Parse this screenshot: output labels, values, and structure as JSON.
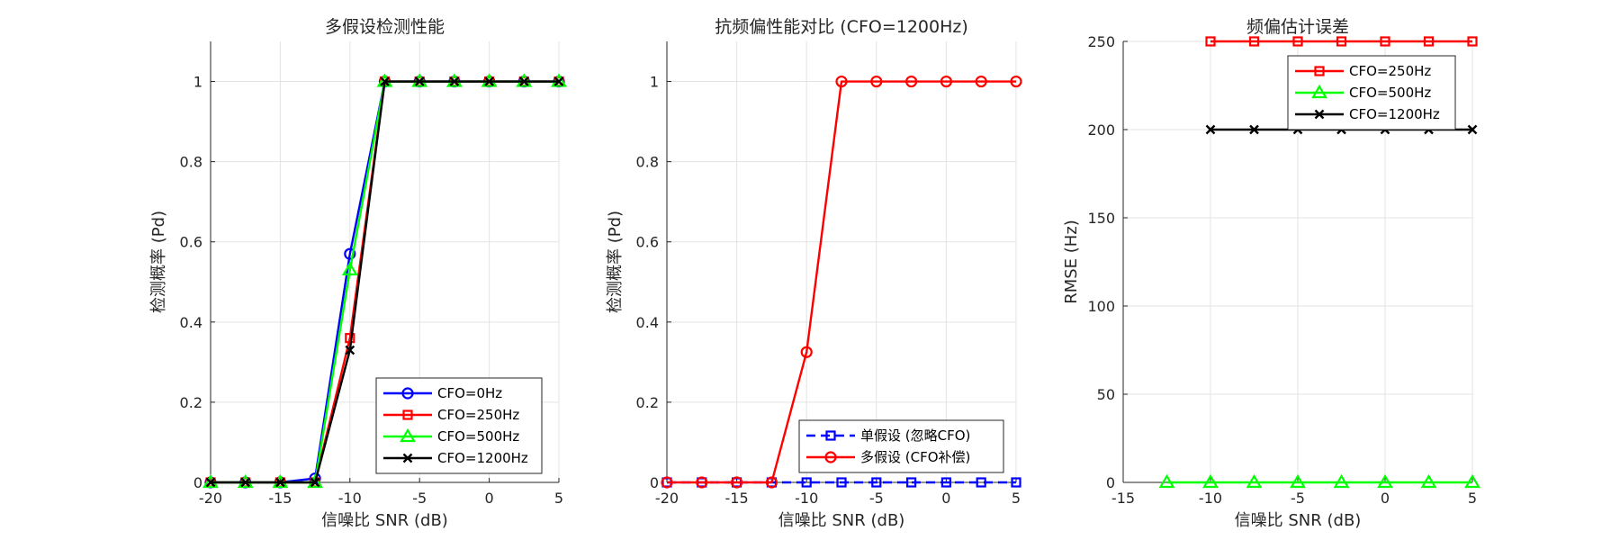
{
  "chart_data": [
    {
      "type": "line",
      "title": "多假设检测性能",
      "xlabel": "信噪比 SNR (dB)",
      "ylabel": "检测概率 (Pd)",
      "xlim": [
        -20,
        5
      ],
      "ylim": [
        0,
        1.1
      ],
      "xticks": [
        -20,
        -15,
        -10,
        -5,
        0,
        5
      ],
      "yticks": [
        0,
        0.2,
        0.4,
        0.6,
        0.8,
        1
      ],
      "ytick_labels": [
        "0",
        "0.2",
        "0.4",
        "0.6",
        "0.8",
        "1"
      ],
      "grid": true,
      "legend_position": "bottom-right",
      "x": [
        -20,
        -17.5,
        -15,
        -12.5,
        -10,
        -7.5,
        -5,
        -2.5,
        0,
        2.5,
        5
      ],
      "series": [
        {
          "name": "CFO=0Hz",
          "color": "#0000FF",
          "marker": "circle",
          "dash": "solid",
          "values": [
            0,
            0,
            0,
            0.01,
            0.57,
            1,
            1,
            1,
            1,
            1,
            1
          ]
        },
        {
          "name": "CFO=250Hz",
          "color": "#FF0000",
          "marker": "square",
          "dash": "solid",
          "values": [
            0,
            0,
            0,
            0,
            0.36,
            1,
            1,
            1,
            1,
            1,
            1
          ]
        },
        {
          "name": "CFO=500Hz",
          "color": "#00FF00",
          "marker": "triangle",
          "dash": "solid",
          "values": [
            0,
            0,
            0,
            0,
            0.53,
            1,
            1,
            1,
            1,
            1,
            1
          ]
        },
        {
          "name": "CFO=1200Hz",
          "color": "#000000",
          "marker": "x",
          "dash": "solid",
          "values": [
            0,
            0,
            0,
            0,
            0.33,
            1,
            1,
            1,
            1,
            1,
            1
          ]
        }
      ]
    },
    {
      "type": "line",
      "title": "抗频偏性能对比 (CFO=1200Hz)",
      "xlabel": "信噪比 SNR (dB)",
      "ylabel": "检测概率 (Pd)",
      "xlim": [
        -20,
        5
      ],
      "ylim": [
        0,
        1.1
      ],
      "xticks": [
        -20,
        -15,
        -10,
        -5,
        0,
        5
      ],
      "yticks": [
        0,
        0.2,
        0.4,
        0.6,
        0.8,
        1
      ],
      "ytick_labels": [
        "0",
        "0.2",
        "0.4",
        "0.6",
        "0.8",
        "1"
      ],
      "grid": true,
      "legend_position": "bottom-right",
      "x": [
        -20,
        -17.5,
        -15,
        -12.5,
        -10,
        -7.5,
        -5,
        -2.5,
        0,
        2.5,
        5
      ],
      "series": [
        {
          "name": "单假设 (忽略CFO)",
          "color": "#0000FF",
          "marker": "square",
          "dash": "dashed",
          "values": [
            0,
            0,
            0,
            0,
            0,
            0,
            0,
            0,
            0,
            0,
            0
          ]
        },
        {
          "name": "多假设 (CFO补偿)",
          "color": "#FF0000",
          "marker": "circle",
          "dash": "solid",
          "values": [
            0,
            0,
            0,
            0,
            0.325,
            1,
            1,
            1,
            1,
            1,
            1
          ]
        }
      ]
    },
    {
      "type": "line",
      "title": "频偏估计误差",
      "xlabel": "信噪比 SNR (dB)",
      "ylabel": "RMSE (Hz)",
      "xlim": [
        -15,
        5
      ],
      "ylim": [
        0,
        250
      ],
      "xticks": [
        -15,
        -10,
        -5,
        0,
        5
      ],
      "yticks": [
        0,
        50,
        100,
        150,
        200,
        250
      ],
      "ytick_labels": [
        "0",
        "50",
        "100",
        "150",
        "200",
        "250"
      ],
      "grid": true,
      "legend_position": "top-right",
      "series": [
        {
          "name": "CFO=250Hz",
          "color": "#FF0000",
          "marker": "square",
          "dash": "solid",
          "x": [
            -10,
            -7.5,
            -5,
            -2.5,
            0,
            2.5,
            5
          ],
          "values": [
            250,
            250,
            250,
            250,
            250,
            250,
            250
          ]
        },
        {
          "name": "CFO=500Hz",
          "color": "#00FF00",
          "marker": "triangle",
          "dash": "solid",
          "x": [
            -12.5,
            -10,
            -7.5,
            -5,
            -2.5,
            0,
            2.5,
            5
          ],
          "values": [
            0,
            0,
            0,
            0,
            0,
            0,
            0,
            0
          ]
        },
        {
          "name": "CFO=1200Hz",
          "color": "#000000",
          "marker": "x",
          "dash": "solid",
          "x": [
            -10,
            -7.5,
            -5,
            -2.5,
            0,
            2.5,
            5
          ],
          "values": [
            200,
            200,
            200,
            200,
            200,
            200,
            200
          ]
        }
      ]
    }
  ]
}
